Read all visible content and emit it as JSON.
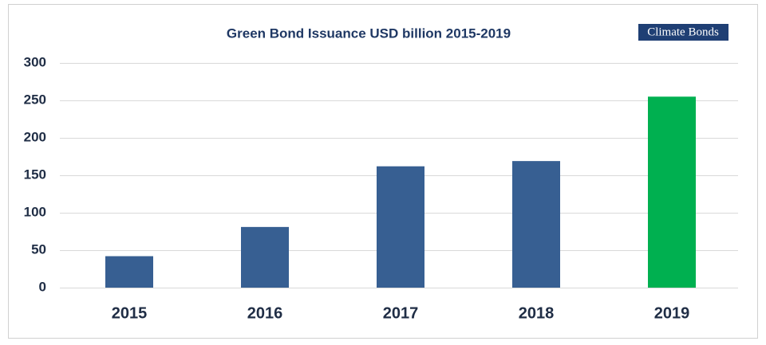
{
  "chart_data": {
    "type": "bar",
    "title": "Green Bond Issuance USD billion 2015-2019",
    "logo": "Climate Bonds",
    "categories": [
      "2015",
      "2016",
      "2017",
      "2018",
      "2019"
    ],
    "values": [
      42,
      81,
      162,
      169,
      255
    ],
    "colors": [
      "#375f92",
      "#375f92",
      "#375f92",
      "#375f92",
      "#00b050"
    ],
    "ylim": [
      0,
      300
    ],
    "yticks": [
      0,
      50,
      100,
      150,
      200,
      250,
      300
    ],
    "grid": true
  }
}
